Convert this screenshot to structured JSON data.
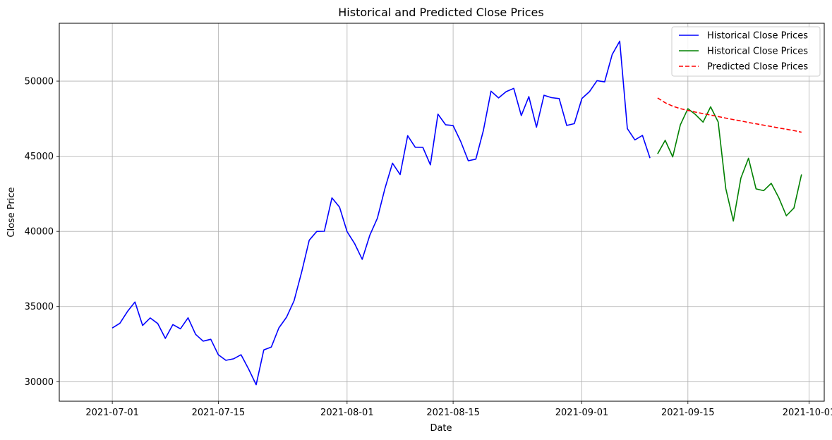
{
  "chart_data": {
    "type": "line",
    "title": "Historical and Predicted Close Prices",
    "xlabel": "Date",
    "ylabel": "Close Price",
    "xlim": [
      "2021-06-24",
      "2021-10-03"
    ],
    "ylim": [
      28700,
      53850
    ],
    "x_ticks": [
      "2021-07-01",
      "2021-07-15",
      "2021-08-01",
      "2021-08-15",
      "2021-09-01",
      "2021-09-15",
      "2021-10-01"
    ],
    "y_ticks": [
      30000,
      35000,
      40000,
      45000,
      50000
    ],
    "grid": true,
    "legend_position": "upper-right",
    "series": [
      {
        "name": "Historical Close Prices",
        "color": "#0000ff",
        "style": "solid",
        "x": [
          "2021-07-01",
          "2021-07-02",
          "2021-07-03",
          "2021-07-04",
          "2021-07-05",
          "2021-07-06",
          "2021-07-07",
          "2021-07-08",
          "2021-07-09",
          "2021-07-10",
          "2021-07-11",
          "2021-07-12",
          "2021-07-13",
          "2021-07-14",
          "2021-07-15",
          "2021-07-16",
          "2021-07-17",
          "2021-07-18",
          "2021-07-19",
          "2021-07-20",
          "2021-07-21",
          "2021-07-22",
          "2021-07-23",
          "2021-07-24",
          "2021-07-25",
          "2021-07-26",
          "2021-07-27",
          "2021-07-28",
          "2021-07-29",
          "2021-07-30",
          "2021-07-31",
          "2021-08-01",
          "2021-08-02",
          "2021-08-03",
          "2021-08-04",
          "2021-08-05",
          "2021-08-06",
          "2021-08-07",
          "2021-08-08",
          "2021-08-09",
          "2021-08-10",
          "2021-08-11",
          "2021-08-12",
          "2021-08-13",
          "2021-08-14",
          "2021-08-15",
          "2021-08-16",
          "2021-08-17",
          "2021-08-18",
          "2021-08-19",
          "2021-08-20",
          "2021-08-21",
          "2021-08-22",
          "2021-08-23",
          "2021-08-24",
          "2021-08-25",
          "2021-08-26",
          "2021-08-27",
          "2021-08-28",
          "2021-08-29",
          "2021-08-30",
          "2021-08-31",
          "2021-09-01",
          "2021-09-02",
          "2021-09-03",
          "2021-09-04",
          "2021-09-05",
          "2021-09-06",
          "2021-09-07",
          "2021-09-08",
          "2021-09-09",
          "2021-09-10"
        ],
        "values": [
          33570,
          33890,
          34670,
          35300,
          33740,
          34240,
          33870,
          32880,
          33800,
          33520,
          34250,
          33150,
          32700,
          32820,
          31790,
          31420,
          31520,
          31790,
          30840,
          29800,
          32110,
          32310,
          33580,
          34290,
          35380,
          37280,
          39410,
          40000,
          40010,
          42230,
          41620,
          39990,
          39180,
          38140,
          39740,
          40880,
          42860,
          44540,
          43780,
          46370,
          45600,
          45590,
          44430,
          47800,
          47100,
          47040,
          45990,
          44700,
          44810,
          46720,
          49330,
          48880,
          49300,
          49520,
          47710,
          48970,
          46940,
          49060,
          48900,
          48840,
          47050,
          47170,
          48850,
          49300,
          50030,
          49950,
          51770,
          52660,
          46840,
          46090,
          46390,
          44880
        ]
      },
      {
        "name": "Historical Close Prices",
        "color": "#008000",
        "style": "solid",
        "x": [
          "2021-09-11",
          "2021-09-12",
          "2021-09-13",
          "2021-09-14",
          "2021-09-15",
          "2021-09-16",
          "2021-09-17",
          "2021-09-18",
          "2021-09-19",
          "2021-09-20",
          "2021-09-21",
          "2021-09-22",
          "2021-09-23",
          "2021-09-24",
          "2021-09-25",
          "2021-09-26",
          "2021-09-27",
          "2021-09-28",
          "2021-09-29",
          "2021-09-30"
        ],
        "values": [
          45160,
          46060,
          44960,
          47090,
          48170,
          47780,
          47270,
          48290,
          47280,
          42850,
          40690,
          43550,
          44870,
          42830,
          42710,
          43200,
          42240,
          41040,
          41560,
          43790
        ]
      },
      {
        "name": "Predicted Close Prices",
        "color": "#ff0000",
        "style": "dashed",
        "x": [
          "2021-09-11",
          "2021-09-12",
          "2021-09-13",
          "2021-09-14",
          "2021-09-15",
          "2021-09-16",
          "2021-09-17",
          "2021-09-18",
          "2021-09-19",
          "2021-09-20",
          "2021-09-21",
          "2021-09-22",
          "2021-09-23",
          "2021-09-24",
          "2021-09-25",
          "2021-09-26",
          "2021-09-27",
          "2021-09-28",
          "2021-09-29",
          "2021-09-30"
        ],
        "values": [
          48880,
          48560,
          48330,
          48170,
          48050,
          47940,
          47840,
          47740,
          47640,
          47540,
          47440,
          47350,
          47250,
          47160,
          47070,
          46980,
          46880,
          46800,
          46710,
          46600
        ]
      }
    ]
  }
}
